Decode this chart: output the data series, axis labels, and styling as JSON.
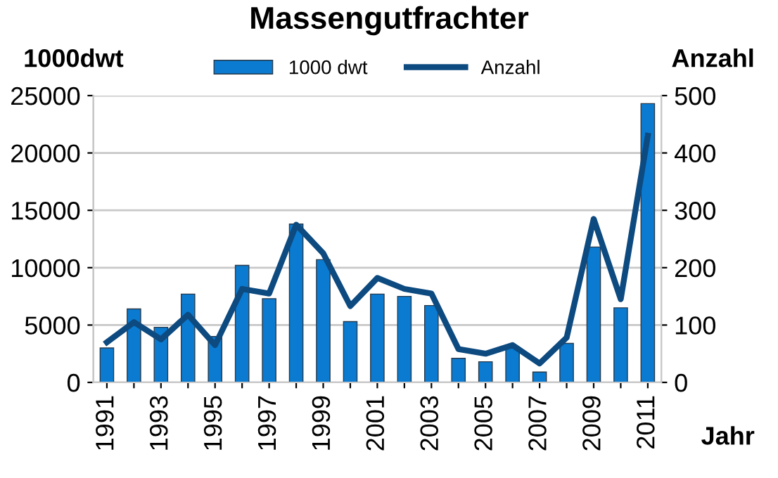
{
  "chart_data": {
    "type": "bar",
    "title": "Massengutfrachter",
    "ylabel": "1000dwt",
    "y2label": "Anzahl",
    "xlabel": "Jahr",
    "categories": [
      "1991",
      null,
      "1993",
      null,
      "1995",
      null,
      "1997",
      null,
      "1999",
      null,
      "2001",
      null,
      "2003",
      null,
      "2005",
      null,
      "2007",
      null,
      "2009",
      null,
      "2011"
    ],
    "series": [
      {
        "name": "1000 dwt",
        "color": "#0a7bd1",
        "values": [
          3000,
          6400,
          4800,
          7700,
          4000,
          10200,
          7300,
          13800,
          10700,
          5300,
          7700,
          7500,
          6700,
          2100,
          1800,
          3000,
          900,
          3400,
          11800,
          6500,
          24300
        ]
      },
      {
        "name": "Anzahl",
        "type": "line",
        "axis": "y2",
        "color": "#0d4a80",
        "values": [
          70,
          105,
          75,
          118,
          65,
          163,
          155,
          275,
          225,
          133,
          182,
          163,
          155,
          58,
          50,
          65,
          33,
          78,
          285,
          145,
          430
        ]
      }
    ],
    "ylim": [
      0,
      25000
    ],
    "yticks": [
      0,
      5000,
      10000,
      15000,
      20000,
      25000
    ],
    "y2lim": [
      0,
      500
    ],
    "y2ticks": [
      0,
      100,
      200,
      300,
      400,
      500
    ],
    "grid": "y",
    "legend": "top",
    "marker": "none",
    "line_style": "solid"
  }
}
